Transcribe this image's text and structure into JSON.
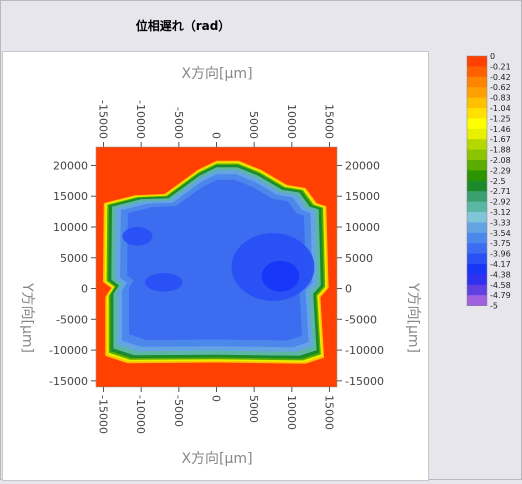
{
  "window": {
    "title": "位相遅れ（rad）"
  },
  "chart_data": {
    "type": "heatmap",
    "title": "位相遅れ（rad）",
    "xlabel_top": "X方向[μm]",
    "xlabel_bottom": "X方向[μm]",
    "ylabel_left": "Y方向[μm]",
    "ylabel_right": "Y方向[μm]",
    "xlim": [
      -16000,
      16000
    ],
    "ylim": [
      -16000,
      23000
    ],
    "xticks": [
      -15000,
      -10000,
      -5000,
      0,
      5000,
      10000,
      15000
    ],
    "yticks": [
      20000,
      15000,
      10000,
      5000,
      0,
      -5000,
      -10000,
      -15000
    ],
    "xtick_labels": [
      "-15000",
      "-10000",
      "-5000",
      "0",
      "5000",
      "10000",
      "15000"
    ],
    "ytick_labels": [
      "20000",
      "15000",
      "10000",
      "5000",
      "0",
      "-5000",
      "-10000",
      "-15000"
    ],
    "legend": {
      "placement": "right",
      "labels": [
        "0",
        "-0.21",
        "-0.42",
        "-0.62",
        "-0.83",
        "-1.04",
        "-1.25",
        "-1.46",
        "-1.67",
        "-1.88",
        "-2.08",
        "-2.29",
        "-2.5",
        "-2.71",
        "-2.92",
        "-3.12",
        "-3.33",
        "-3.54",
        "-3.75",
        "-3.96",
        "-4.17",
        "-4.38",
        "-4.58",
        "-4.79",
        "-5"
      ],
      "colors": [
        "#ff4000",
        "#ff6000",
        "#ff8400",
        "#ffa000",
        "#ffc000",
        "#ffe000",
        "#ffff00",
        "#e8f000",
        "#b4d800",
        "#8cc400",
        "#5cac00",
        "#2c9400",
        "#1a8a2a",
        "#3aa070",
        "#5cb6a4",
        "#80c4d8",
        "#64a4e4",
        "#4c88ec",
        "#3c6cf0",
        "#2850f4",
        "#1836f8",
        "#3030f0",
        "#6040e0",
        "#a060e0",
        "#e090e8"
      ]
    },
    "shape_outline": [
      [
        -15200,
        14000
      ],
      [
        -11000,
        15300
      ],
      [
        -7000,
        15500
      ],
      [
        -2500,
        19500
      ],
      [
        0,
        21000
      ],
      [
        3000,
        21000
      ],
      [
        6000,
        19500
      ],
      [
        9500,
        17000
      ],
      [
        12000,
        16500
      ],
      [
        13500,
        14000
      ],
      [
        14800,
        13500
      ],
      [
        15100,
        0
      ],
      [
        14000,
        -1500
      ],
      [
        14500,
        -11500
      ],
      [
        12000,
        -12500
      ],
      [
        0,
        -12300
      ],
      [
        -12000,
        -12400
      ],
      [
        -15000,
        -11200
      ],
      [
        -15000,
        -1500
      ],
      [
        -14200,
        0
      ],
      [
        -15300,
        1000
      ]
    ],
    "value_regions": [
      {
        "level": 0,
        "outline_scale": 1.0
      },
      {
        "level": -0.83,
        "outline_scale": 0.985
      },
      {
        "level": -1.46,
        "outline_scale": 0.97
      },
      {
        "level": -2.08,
        "outline_scale": 0.955
      },
      {
        "level": -2.5,
        "outline_scale": 0.94
      },
      {
        "level": -2.92,
        "outline_scale": 0.915
      },
      {
        "level": -3.33,
        "outline_scale": 0.88
      },
      {
        "level": -3.54,
        "outline_scale": 0.84
      },
      {
        "level": -3.75,
        "outline_scale": 0.78
      }
    ],
    "deep_spots": [
      {
        "level": -3.96,
        "x": 7500,
        "y": 3500,
        "rx": 5500,
        "ry": 5500
      },
      {
        "level": -3.96,
        "x": -10500,
        "y": 8500,
        "rx": 2000,
        "ry": 1500
      },
      {
        "level": -3.96,
        "x": -7000,
        "y": 1000,
        "rx": 2500,
        "ry": 1500
      },
      {
        "level": -4.17,
        "x": 8500,
        "y": 2000,
        "rx": 2500,
        "ry": 2500
      }
    ]
  }
}
